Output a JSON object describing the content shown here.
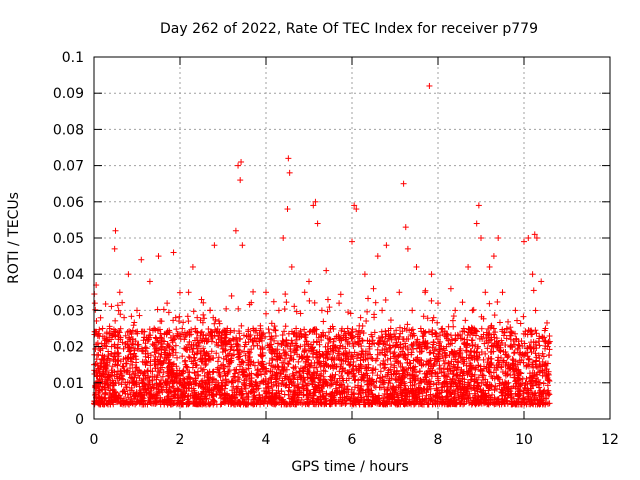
{
  "chart_data": {
    "type": "scatter",
    "title": "Day 262 of 2022, Rate Of TEC Index for receiver p779",
    "xlabel": "GPS time / hours",
    "ylabel": "ROTI / TECUs",
    "xlim": [
      0,
      12
    ],
    "ylim": [
      0,
      0.1
    ],
    "xticks": [
      0,
      2,
      4,
      6,
      8,
      10,
      12
    ],
    "yticks": [
      0,
      0.01,
      0.02,
      0.03,
      0.04,
      0.05,
      0.06,
      0.07,
      0.08,
      0.09,
      0.1
    ],
    "xtick_labels": [
      "0",
      "2",
      "4",
      "6",
      "8",
      "10",
      "12"
    ],
    "ytick_labels": [
      "0",
      "0.01",
      "0.02",
      "0.03",
      "0.04",
      "0.05",
      "0.06",
      "0.07",
      "0.08",
      "0.09",
      "0.1"
    ],
    "grid": true,
    "marker": "+",
    "color": "#ff0000",
    "series": [
      {
        "name": "ROTI",
        "x": [
          0.0,
          0.02,
          0.05,
          0.08,
          0.1,
          0.15,
          0.2,
          0.3,
          0.4,
          0.48,
          0.5,
          0.55,
          0.6,
          0.7,
          0.8,
          0.9,
          1.0,
          1.1,
          1.2,
          1.3,
          1.4,
          1.5,
          1.6,
          1.7,
          1.8,
          1.85,
          1.9,
          2.0,
          2.1,
          2.2,
          2.3,
          2.4,
          2.5,
          2.6,
          2.7,
          2.8,
          2.9,
          3.0,
          3.1,
          3.2,
          3.3,
          3.35,
          3.4,
          3.42,
          3.45,
          3.5,
          3.6,
          3.7,
          3.8,
          3.9,
          4.0,
          4.1,
          4.2,
          4.3,
          4.4,
          4.5,
          4.52,
          4.55,
          4.6,
          4.7,
          4.8,
          4.9,
          5.0,
          5.1,
          5.15,
          5.2,
          5.3,
          5.4,
          5.5,
          5.6,
          5.7,
          5.8,
          5.9,
          6.0,
          6.05,
          6.1,
          6.2,
          6.3,
          6.4,
          6.5,
          6.6,
          6.7,
          6.8,
          6.9,
          7.0,
          7.1,
          7.2,
          7.25,
          7.3,
          7.4,
          7.5,
          7.6,
          7.7,
          7.8,
          7.85,
          7.9,
          8.0,
          8.1,
          8.2,
          8.3,
          8.4,
          8.5,
          8.6,
          8.7,
          8.8,
          8.9,
          8.95,
          9.0,
          9.1,
          9.2,
          9.3,
          9.4,
          9.5,
          9.6,
          9.7,
          9.8,
          9.9,
          10.0,
          10.1,
          10.2,
          10.25,
          10.3,
          10.4,
          10.5,
          10.55
        ],
        "y": [
          0.015,
          0.032,
          0.037,
          0.012,
          0.02,
          0.01,
          0.025,
          0.013,
          0.018,
          0.047,
          0.052,
          0.015,
          0.035,
          0.028,
          0.04,
          0.022,
          0.03,
          0.044,
          0.018,
          0.038,
          0.025,
          0.045,
          0.02,
          0.032,
          0.015,
          0.046,
          0.028,
          0.012,
          0.022,
          0.035,
          0.042,
          0.028,
          0.033,
          0.016,
          0.03,
          0.048,
          0.022,
          0.015,
          0.025,
          0.034,
          0.052,
          0.07,
          0.066,
          0.071,
          0.048,
          0.02,
          0.018,
          0.025,
          0.012,
          0.015,
          0.035,
          0.022,
          0.018,
          0.03,
          0.05,
          0.058,
          0.072,
          0.068,
          0.042,
          0.025,
          0.02,
          0.035,
          0.038,
          0.059,
          0.06,
          0.054,
          0.03,
          0.041,
          0.025,
          0.02,
          0.032,
          0.018,
          0.025,
          0.049,
          0.059,
          0.058,
          0.028,
          0.04,
          0.02,
          0.036,
          0.045,
          0.03,
          0.048,
          0.025,
          0.02,
          0.035,
          0.065,
          0.053,
          0.047,
          0.03,
          0.042,
          0.025,
          0.035,
          0.092,
          0.04,
          0.028,
          0.032,
          0.025,
          0.02,
          0.036,
          0.03,
          0.018,
          0.025,
          0.042,
          0.03,
          0.054,
          0.059,
          0.05,
          0.035,
          0.042,
          0.045,
          0.05,
          0.035,
          0.025,
          0.02,
          0.03,
          0.018,
          0.049,
          0.05,
          0.04,
          0.051,
          0.05,
          0.038,
          0.025,
          0.02
        ]
      }
    ],
    "background_band": {
      "x_start": 0.0,
      "x_end": 10.6,
      "y_low": 0.004,
      "y_high": 0.025,
      "description_count": 4200
    }
  }
}
